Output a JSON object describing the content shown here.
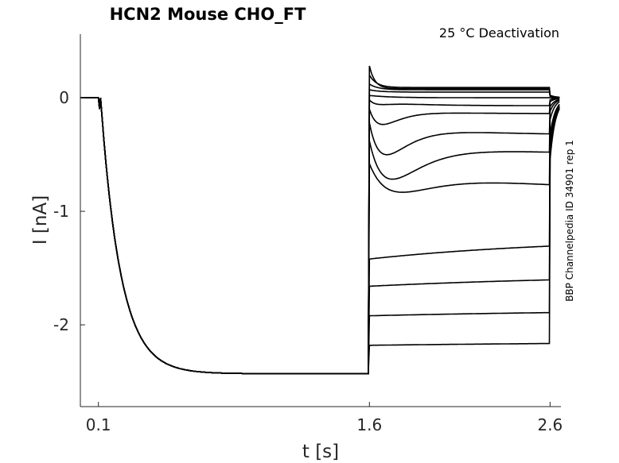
{
  "chart_data": {
    "type": "line",
    "title": "HCN2  Mouse  CHO_FT",
    "annotation": "25 °C  Deactivation",
    "side_note": "BBP Channelpedia ID 34901 rep 1",
    "xlabel": "t [s]",
    "ylabel": "I [nA]",
    "xlim": [
      0.0,
      2.66
    ],
    "ylim": [
      -2.72,
      0.56
    ],
    "x_ticks": [
      0.1,
      1.6,
      2.6
    ],
    "x_tick_labels": [
      "0.1",
      "1.6",
      "2.6"
    ],
    "y_ticks": [
      0,
      -1,
      -2
    ],
    "y_tick_labels": [
      "0",
      "-1",
      "-2"
    ],
    "grid": false,
    "legend": "none",
    "protocol": {
      "holding_current": 0.0,
      "prepulse_start": 0.1,
      "prepulse_end": 1.6,
      "test_end": 2.6,
      "prepulse_steady_state": -2.43,
      "prepulse_tau": 0.11,
      "tail_steady_state": 0.0
    },
    "series": [
      {
        "start": 0.28,
        "end": 0.08,
        "tau": 0.03
      },
      {
        "start": -2.18,
        "end": -2.14,
        "tau": 2.0
      },
      {
        "start": -1.92,
        "end": -1.86,
        "tau": 1.6
      },
      {
        "start": -1.66,
        "end": -1.55,
        "tau": 1.4
      },
      {
        "start": -1.42,
        "end": -1.23,
        "tau": 1.1
      },
      {
        "start": -0.58,
        "end": -0.85,
        "tau": 0.9,
        "dip": -1.08,
        "dip_t": 0.15
      },
      {
        "start": -0.38,
        "end": -0.5,
        "tau": 0.6,
        "dip": -0.85,
        "dip_t": 0.12
      },
      {
        "start": -0.22,
        "end": -0.33,
        "tau": 0.45,
        "dip": -0.62,
        "dip_t": 0.09
      },
      {
        "start": -0.1,
        "end": -0.14,
        "tau": 0.28,
        "dip": -0.28,
        "dip_t": 0.07
      },
      {
        "start": -0.02,
        "end": -0.07,
        "tau": 0.2,
        "dip": -0.1,
        "dip_t": 0.05
      },
      {
        "start": 0.02,
        "end": 0.0,
        "tau": 0.12
      },
      {
        "start": 0.07,
        "end": 0.05,
        "tau": 0.06
      },
      {
        "start": 0.12,
        "end": 0.07,
        "tau": 0.05
      },
      {
        "start": 0.2,
        "end": 0.09,
        "tau": 0.04
      }
    ]
  }
}
